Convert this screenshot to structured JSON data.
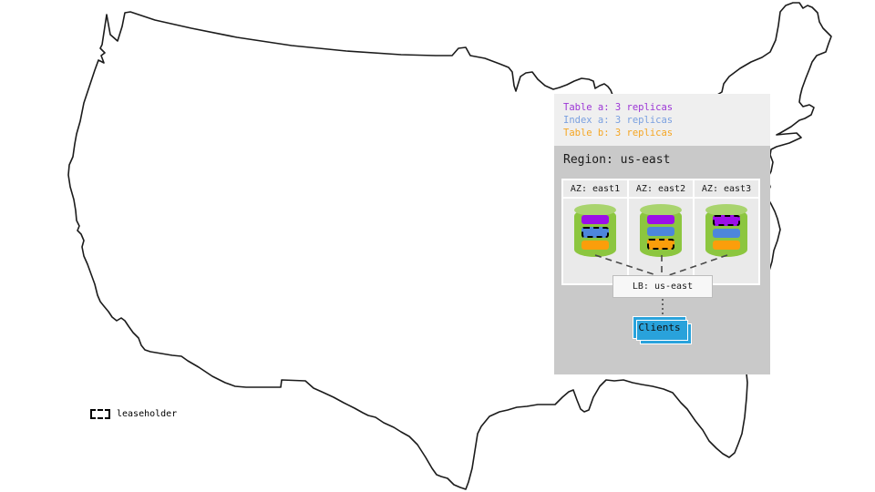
{
  "colors": {
    "panel_bg": "#EFEFEF",
    "region_bg": "#C9C9C9",
    "az_cell_bg": "#EAEAEA",
    "lb_bg": "#F7F7F7",
    "clients_blue": "#29A2DB",
    "cylinder_green": "#8CC63F",
    "cylinder_top_green": "#A9D46E",
    "table_a_purple": "#9B0FE8",
    "index_a_blue": "#4D86DB",
    "table_b_orange": "#FB9E0B",
    "legend_table_a": "#9C36D6",
    "legend_index_a": "#7AA0E0",
    "legend_table_b": "#F5A623",
    "map_outline": "#1B1B1B"
  },
  "replica_legend": {
    "items": [
      {
        "label": "Table a: 3 replicas",
        "color_key": "legend_table_a"
      },
      {
        "label": "Index a: 3 replicas",
        "color_key": "legend_index_a"
      },
      {
        "label": "Table b: 3 replicas",
        "color_key": "legend_table_b"
      }
    ]
  },
  "region": {
    "title": "Region: us-east",
    "azs": [
      {
        "label": "AZ: east1",
        "replicas": [
          {
            "name": "table-a",
            "color_key": "table_a_purple",
            "leaseholder": false
          },
          {
            "name": "index-a",
            "color_key": "index_a_blue",
            "leaseholder": true
          },
          {
            "name": "table-b",
            "color_key": "table_b_orange",
            "leaseholder": false
          }
        ]
      },
      {
        "label": "AZ: east2",
        "replicas": [
          {
            "name": "table-a",
            "color_key": "table_a_purple",
            "leaseholder": false
          },
          {
            "name": "index-a",
            "color_key": "index_a_blue",
            "leaseholder": false
          },
          {
            "name": "table-b",
            "color_key": "table_b_orange",
            "leaseholder": true
          }
        ]
      },
      {
        "label": "AZ: east3",
        "replicas": [
          {
            "name": "table-a",
            "color_key": "table_a_purple",
            "leaseholder": true
          },
          {
            "name": "index-a",
            "color_key": "index_a_blue",
            "leaseholder": false
          },
          {
            "name": "table-b",
            "color_key": "table_b_orange",
            "leaseholder": false
          }
        ]
      }
    ],
    "lb_label": "LB: us-east",
    "clients_label": "Clients"
  },
  "leaseholder_legend": {
    "label": "leaseholder"
  }
}
